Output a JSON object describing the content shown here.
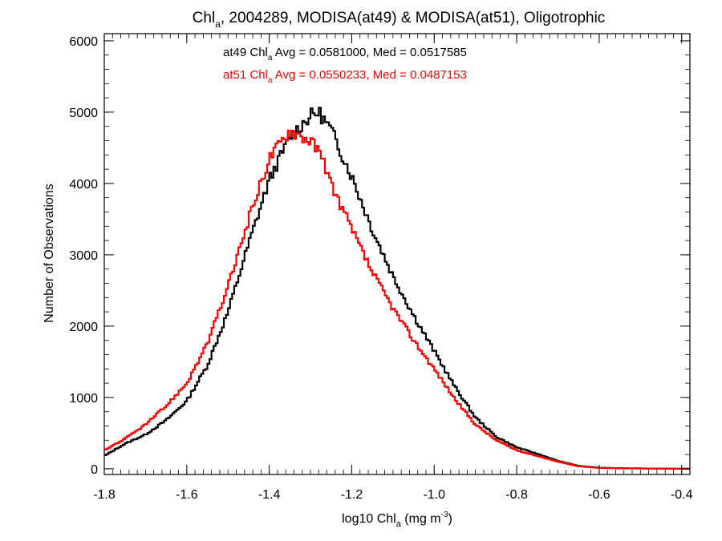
{
  "chart_data": {
    "type": "line",
    "title": {
      "main": "Chl",
      "sub": "a",
      "rest": ", 2004289, MODISA(at49) & MODISA(at51), Oligotrophic"
    },
    "xlabel": {
      "pre": "log10 Chl",
      "sub": "a",
      "mid": " (mg m",
      "sup": "-3",
      "post": ")"
    },
    "ylabel": "Number of Observations",
    "xlim": [
      -1.8,
      -0.38
    ],
    "ylim": [
      -80,
      6100
    ],
    "xticks": [
      -1.8,
      -1.6,
      -1.4,
      -1.2,
      -1.0,
      -0.8,
      -0.6,
      -0.4
    ],
    "xtick_labels": [
      "-1.8",
      "-1.6",
      "-1.4",
      "-1.2",
      "-1.0",
      "-0.8",
      "-0.6",
      "-0.4"
    ],
    "yticks": [
      0,
      1000,
      2000,
      3000,
      4000,
      5000,
      6000
    ],
    "ytick_labels": [
      "0",
      "1000",
      "2000",
      "3000",
      "4000",
      "5000",
      "6000"
    ],
    "annotations": [
      {
        "pre": "at49 Chl",
        "sub": "a",
        "post": " Avg = 0.0581000, Med = 0.0517585",
        "color": "#000000"
      },
      {
        "pre": "at51 Chl",
        "sub": "a",
        "post": " Avg = 0.0550233, Med = 0.0487153",
        "color": "#ff0000"
      }
    ],
    "grid": false,
    "style": "histogram-step",
    "series": [
      {
        "color": "#000000",
        "x": [
          -1.8,
          -1.75,
          -1.7,
          -1.65,
          -1.6,
          -1.55,
          -1.5,
          -1.45,
          -1.4,
          -1.35,
          -1.3,
          -1.28,
          -1.25,
          -1.2,
          -1.15,
          -1.1,
          -1.05,
          -1.0,
          -0.95,
          -0.9,
          -0.85,
          -0.8,
          -0.75,
          -0.7,
          -0.65,
          -0.6,
          -0.55,
          -0.5,
          -0.45,
          -0.4
        ],
        "values": [
          180,
          350,
          480,
          680,
          950,
          1450,
          2200,
          3150,
          4050,
          4650,
          4950,
          5000,
          4750,
          4100,
          3350,
          2700,
          2150,
          1650,
          1150,
          720,
          450,
          300,
          210,
          110,
          40,
          15,
          8,
          5,
          2,
          0
        ]
      },
      {
        "color": "#ff0000",
        "x": [
          -1.8,
          -1.75,
          -1.7,
          -1.65,
          -1.6,
          -1.55,
          -1.5,
          -1.45,
          -1.4,
          -1.35,
          -1.3,
          -1.28,
          -1.25,
          -1.2,
          -1.15,
          -1.1,
          -1.05,
          -1.0,
          -0.95,
          -0.9,
          -0.85,
          -0.8,
          -0.75,
          -0.7,
          -0.65,
          -0.6,
          -0.55,
          -0.5,
          -0.45,
          -0.4
        ],
        "values": [
          260,
          420,
          620,
          880,
          1200,
          1750,
          2550,
          3500,
          4350,
          4750,
          4600,
          4450,
          4000,
          3350,
          2750,
          2250,
          1800,
          1400,
          980,
          620,
          400,
          260,
          180,
          100,
          35,
          12,
          6,
          4,
          2,
          0
        ]
      }
    ]
  }
}
